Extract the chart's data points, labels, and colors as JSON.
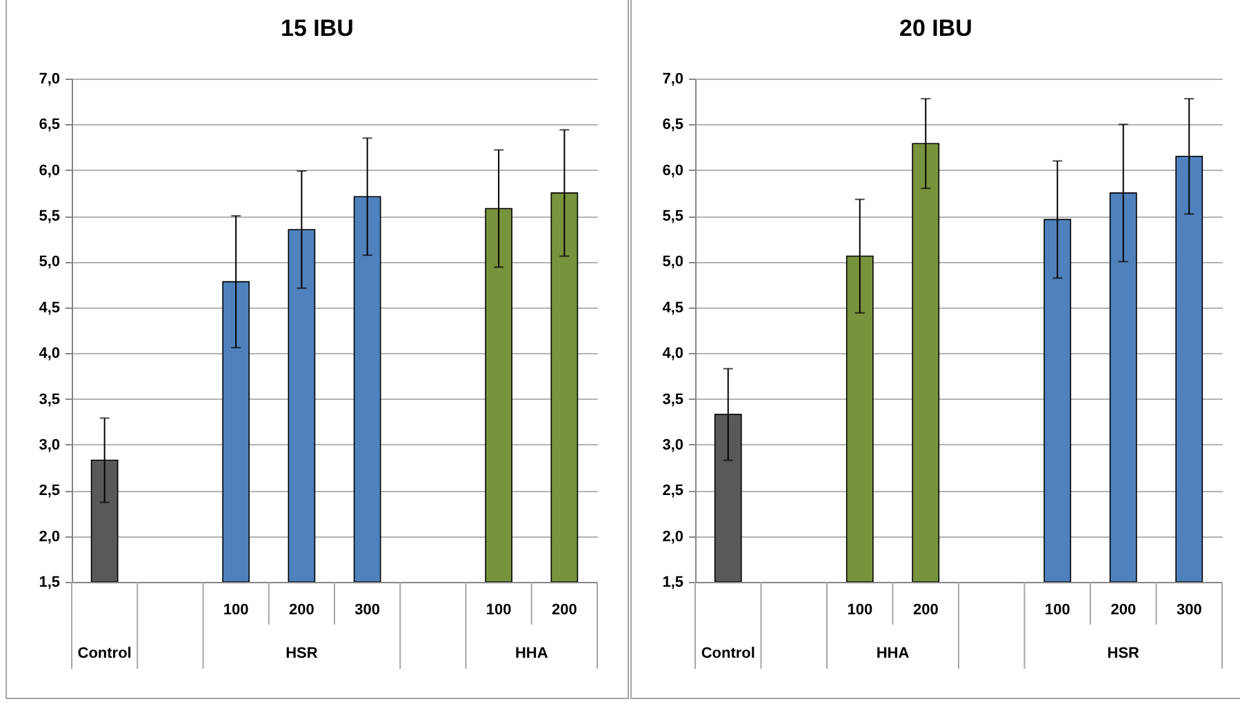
{
  "chart_data": [
    {
      "type": "bar",
      "title": "15 IBU",
      "categories": [
        null,
        null,
        "100",
        "200",
        "300",
        null,
        "100",
        "200"
      ],
      "values": [
        2.83,
        null,
        4.78,
        5.35,
        5.71,
        null,
        5.58,
        5.75
      ],
      "errors": [
        0.46,
        null,
        0.72,
        0.64,
        0.64,
        null,
        0.64,
        0.69
      ],
      "colors": [
        "#58595b",
        null,
        "#4f81bd",
        "#4f81bd",
        "#4f81bd",
        null,
        "#77933c",
        "#77933c"
      ],
      "annotations": [
        "Control",
        "HSR",
        "HHA"
      ],
      "ylim": [
        1.5,
        7
      ],
      "yticks": [
        {
          "value": 1.5,
          "label": "1,5"
        },
        {
          "value": 2,
          "label": "2,0"
        },
        {
          "value": 2.5,
          "label": "2,5"
        },
        {
          "value": 3,
          "label": "3,0"
        },
        {
          "value": 3.5,
          "label": "3,5"
        },
        {
          "value": 4,
          "label": "4,0"
        },
        {
          "value": 4.5,
          "label": "4,5"
        },
        {
          "value": 5,
          "label": "5,0"
        },
        {
          "value": 5.5,
          "label": "5,5"
        },
        {
          "value": 6,
          "label": "6,0"
        },
        {
          "value": 6.5,
          "label": "6,5"
        },
        {
          "value": 7,
          "label": "7,0"
        }
      ],
      "grid": "y"
    },
    {
      "type": "bar",
      "title": "20 IBU",
      "categories": [
        null,
        null,
        "100",
        "200",
        null,
        "100",
        "200",
        "300"
      ],
      "values": [
        3.33,
        null,
        5.06,
        6.29,
        null,
        5.46,
        5.75,
        6.15
      ],
      "errors": [
        0.5,
        null,
        0.62,
        0.49,
        null,
        0.64,
        0.75,
        0.63
      ],
      "colors": [
        "#58595b",
        null,
        "#77933c",
        "#77933c",
        null,
        "#4f81bd",
        "#4f81bd",
        "#4f81bd"
      ],
      "annotations": [
        "Control",
        "HHA",
        "HSR"
      ],
      "ylim": [
        1.5,
        7
      ],
      "yticks": [
        {
          "value": 1.5,
          "label": "1,5"
        },
        {
          "value": 2,
          "label": "2,0"
        },
        {
          "value": 2.5,
          "label": "2,5"
        },
        {
          "value": 3,
          "label": "3,0"
        },
        {
          "value": 3.5,
          "label": "3,5"
        },
        {
          "value": 4,
          "label": "4,0"
        },
        {
          "value": 4.5,
          "label": "4,5"
        },
        {
          "value": 5,
          "label": "5,0"
        },
        {
          "value": 5.5,
          "label": "5,5"
        },
        {
          "value": 6,
          "label": "6,0"
        },
        {
          "value": 6.5,
          "label": "6,5"
        },
        {
          "value": 7,
          "label": "7,0"
        }
      ],
      "grid": "y"
    }
  ]
}
